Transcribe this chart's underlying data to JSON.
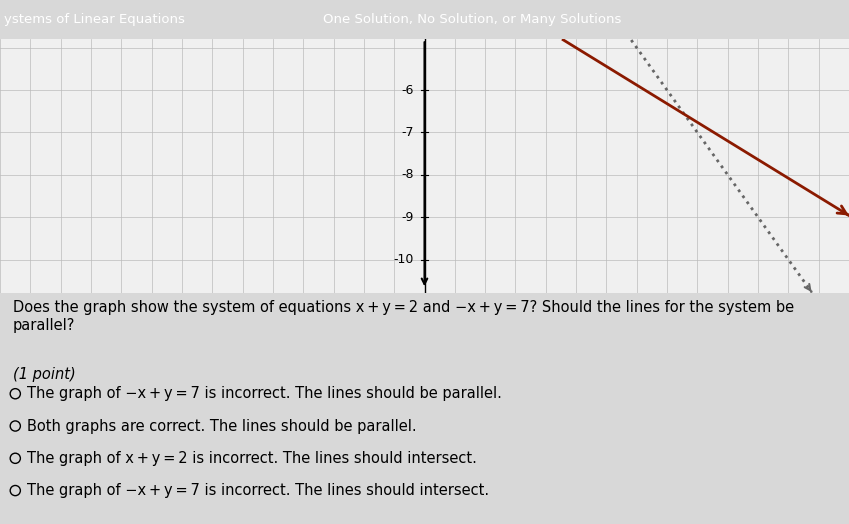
{
  "title_left": "ystems of Linear Equations",
  "title_sep": "—",
  "title_right": "One Solution, No Solution, or Many Solutions",
  "header_bg": "#29b8c1",
  "grid_bg": "#f5f5f5",
  "outer_bg": "#d8d8d8",
  "graph_bg": "#f0f0f0",
  "y_min": -10.8,
  "y_max": -4.8,
  "x_min": -14,
  "x_max": 14,
  "y_ticks": [
    -10,
    -9,
    -8,
    -7,
    -6
  ],
  "dotted_color": "#666666",
  "solid_color": "#8B1A00",
  "question_text": "Does the graph show the system of equations x + y = 2 and −x + y = 7? Should the lines for the system be parallel?",
  "point_label": "(1 point)",
  "options": [
    "The graph of −x + y = 7 is incorrect. The lines should be parallel.",
    "Both graphs are correct. The lines should be parallel.",
    "The graph of x + y = 2 is incorrect. The lines should intersect.",
    "The graph of −x + y = 7 is incorrect. The lines should intersect."
  ],
  "text_color": "#000000",
  "font_size_options": 10.5,
  "font_size_question": 10.5,
  "font_size_title": 9.5
}
